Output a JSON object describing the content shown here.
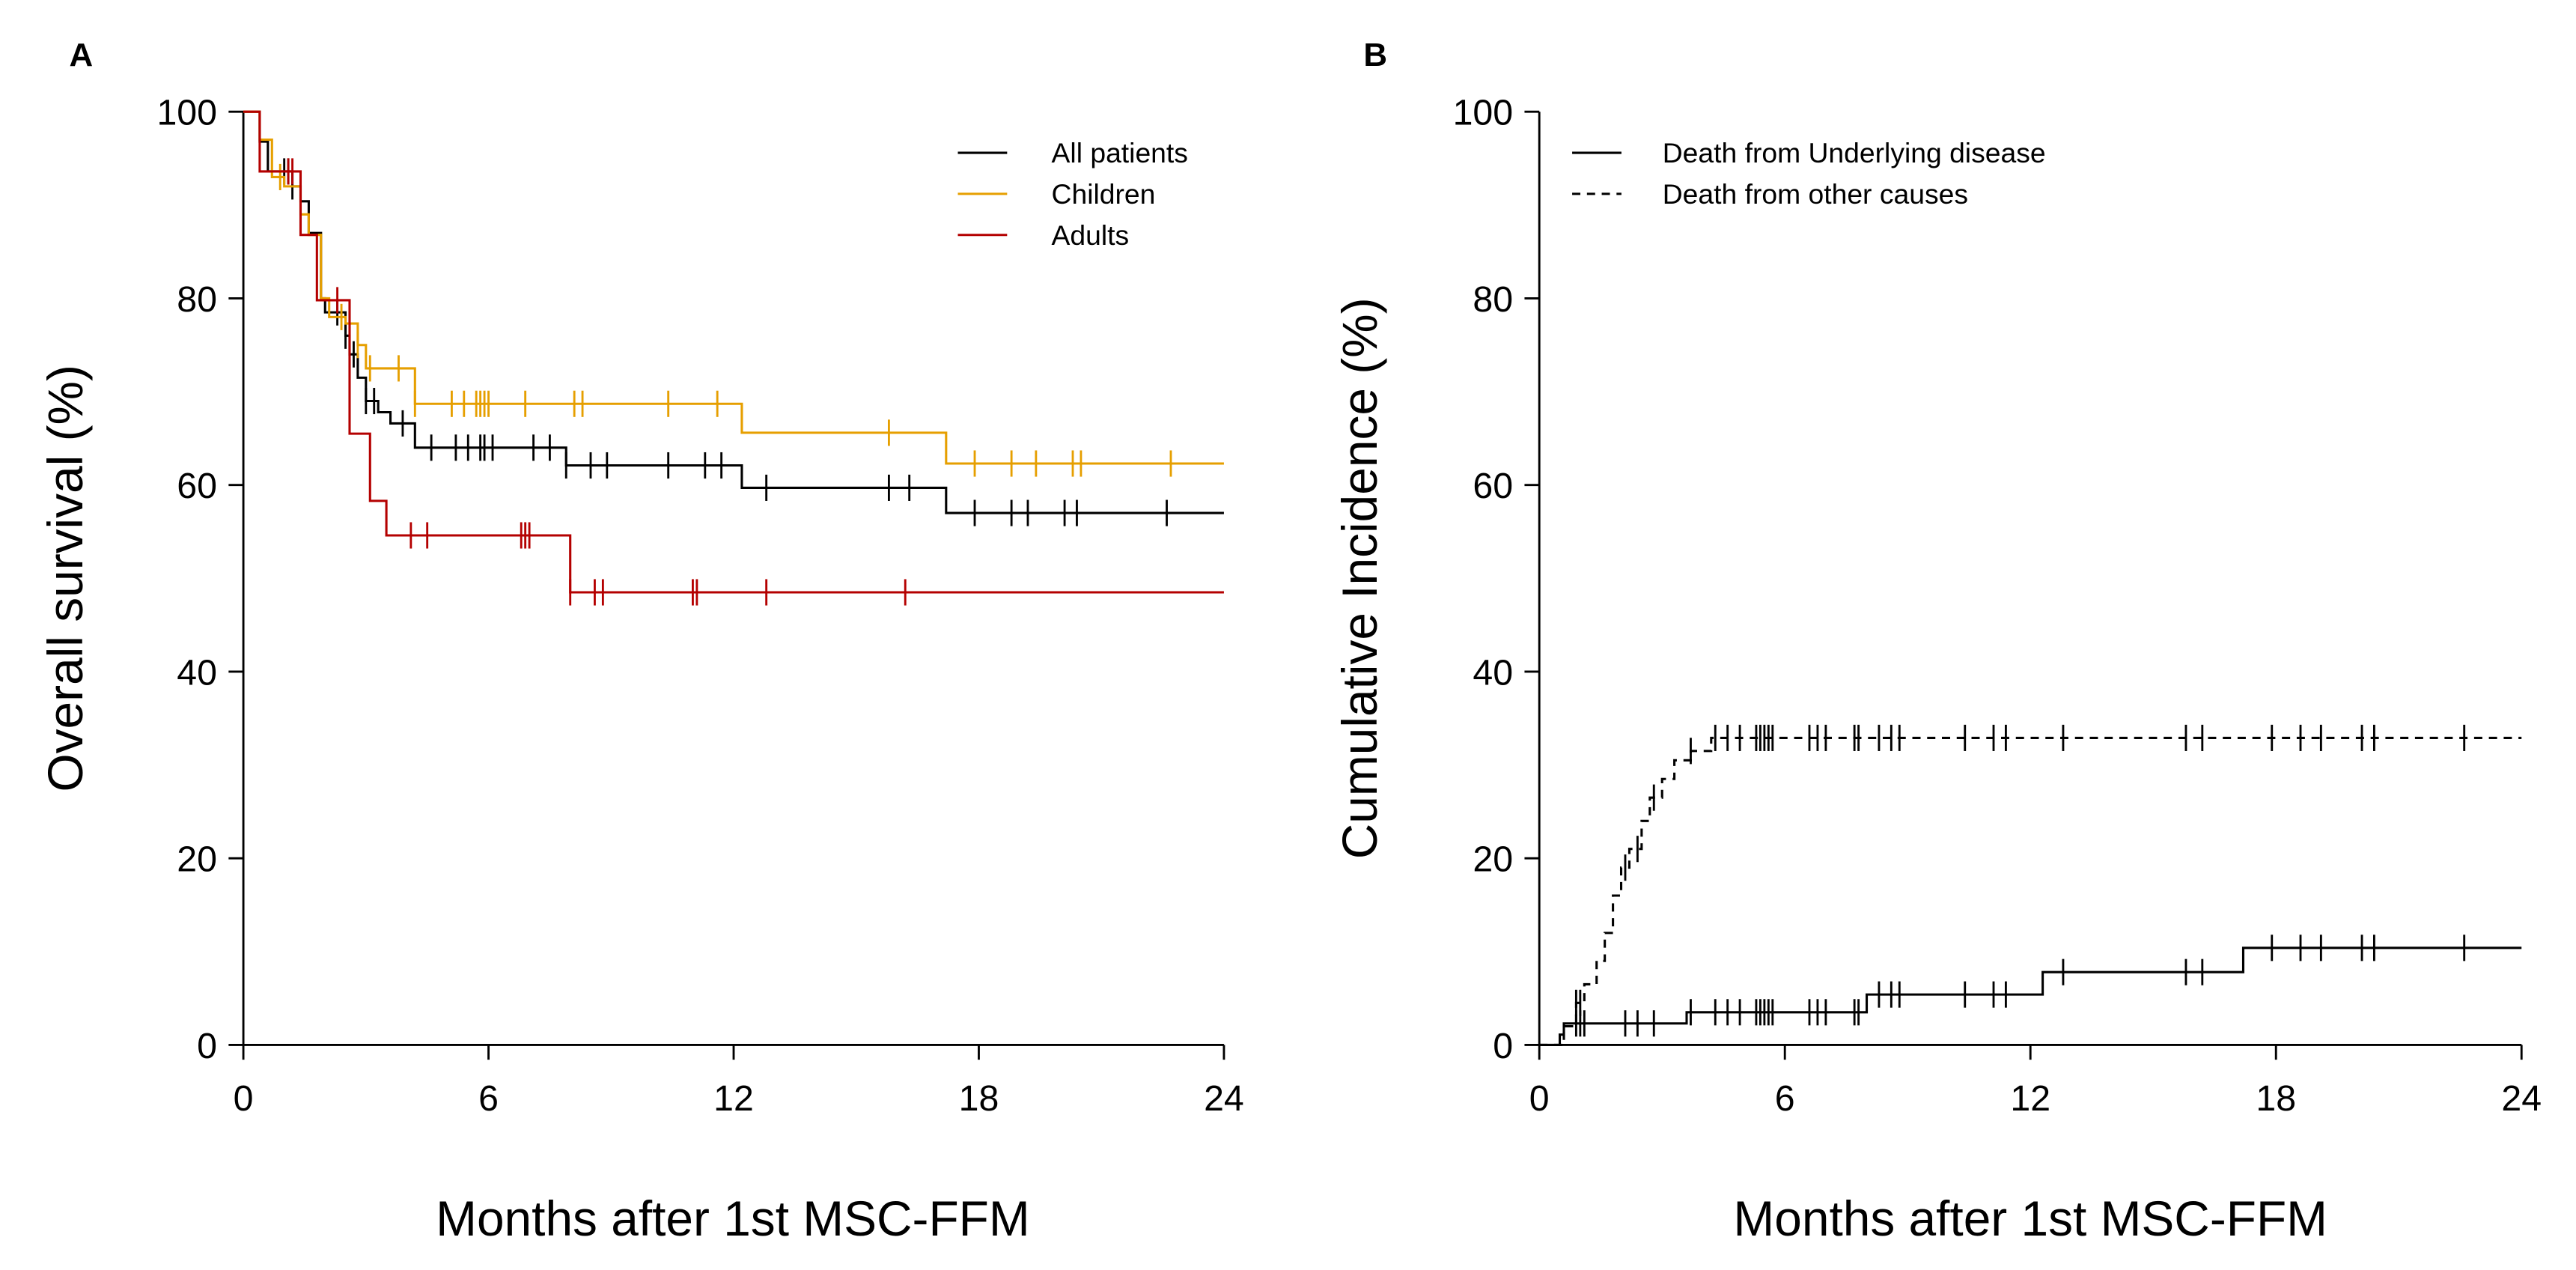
{
  "chart_data": [
    {
      "panel": "A",
      "type": "line",
      "step": true,
      "xlabel": "Months after 1st MSC-FFM",
      "ylabel": "Overall survival (%)",
      "xlim": [
        0,
        24
      ],
      "ylim": [
        0,
        100
      ],
      "xticks": [
        0,
        6,
        12,
        18,
        24
      ],
      "yticks": [
        0,
        20,
        40,
        60,
        80,
        100
      ],
      "legend_position": "top-right",
      "series": [
        {
          "name": "All patients",
          "color": "#000000",
          "dash": false,
          "points": [
            [
              0,
              100
            ],
            [
              0.4,
              96.8
            ],
            [
              0.6,
              93.6
            ],
            [
              1.2,
              92
            ],
            [
              1.4,
              90.4
            ],
            [
              1.6,
              87
            ],
            [
              1.9,
              80
            ],
            [
              2.0,
              78.5
            ],
            [
              2.5,
              76
            ],
            [
              2.6,
              74
            ],
            [
              2.8,
              71.5
            ],
            [
              3.0,
              69
            ],
            [
              3.3,
              67.8
            ],
            [
              3.6,
              66.6
            ],
            [
              4.2,
              64
            ],
            [
              7.9,
              62.1
            ],
            [
              12.2,
              59.7
            ],
            [
              17.2,
              57
            ],
            [
              24,
              57
            ]
          ],
          "censored": [
            1.0,
            1.1,
            1.2,
            2.3,
            2.5,
            2.7,
            3.0,
            3.2,
            3.9,
            4.6,
            5.2,
            5.5,
            5.8,
            5.9,
            6.1,
            7.1,
            7.5,
            7.9,
            8.5,
            8.9,
            10.4,
            11.3,
            11.7,
            12.8,
            15.8,
            16.3,
            17.9,
            18.8,
            19.2,
            20.1,
            20.4,
            22.6
          ]
        },
        {
          "name": "Children",
          "color": "#E69F00",
          "dash": false,
          "points": [
            [
              0,
              100
            ],
            [
              0.4,
              97
            ],
            [
              0.7,
              93
            ],
            [
              1.0,
              92
            ],
            [
              1.4,
              89
            ],
            [
              1.6,
              86.8
            ],
            [
              1.9,
              80
            ],
            [
              2.1,
              78
            ],
            [
              2.5,
              77.3
            ],
            [
              2.8,
              75
            ],
            [
              3.0,
              72.5
            ],
            [
              4.2,
              68.7
            ],
            [
              12.2,
              65.6
            ],
            [
              17.2,
              62.3
            ],
            [
              24,
              62.3
            ]
          ],
          "censored": [
            0.9,
            2.4,
            2.8,
            3.1,
            3.8,
            4.2,
            5.1,
            5.4,
            5.7,
            5.8,
            5.9,
            6.0,
            6.9,
            8.1,
            8.3,
            10.4,
            11.6,
            15.8,
            17.9,
            18.8,
            19.4,
            20.3,
            20.5,
            22.7
          ]
        },
        {
          "name": "Adults",
          "color": "#B40000",
          "dash": false,
          "points": [
            [
              0,
              100
            ],
            [
              0.4,
              93.6
            ],
            [
              1.4,
              86.8
            ],
            [
              1.8,
              79.8
            ],
            [
              2.6,
              65.5
            ],
            [
              3.1,
              58.3
            ],
            [
              3.5,
              54.6
            ],
            [
              8.0,
              48.5
            ],
            [
              24,
              48.5
            ]
          ],
          "censored": [
            1.1,
            1.2,
            2.3,
            4.1,
            4.5,
            6.8,
            6.9,
            7.0,
            8.0,
            8.6,
            8.8,
            11.0,
            11.1,
            12.8,
            16.2
          ]
        }
      ]
    },
    {
      "panel": "B",
      "type": "line",
      "step": true,
      "xlabel": "Months after 1st MSC-FFM",
      "ylabel": "Cumulative Incidence (%)",
      "xlim": [
        0,
        24
      ],
      "ylim": [
        0,
        100
      ],
      "xticks": [
        0,
        6,
        12,
        18,
        24
      ],
      "yticks": [
        0,
        20,
        40,
        60,
        80,
        100
      ],
      "legend_position": "top-left",
      "series": [
        {
          "name": "Death from Underlying disease",
          "color": "#000000",
          "dash": false,
          "points": [
            [
              0,
              0
            ],
            [
              0.5,
              0
            ],
            [
              0.5,
              1.1
            ],
            [
              0.6,
              2.3
            ],
            [
              3.6,
              3.5
            ],
            [
              8.0,
              5.4
            ],
            [
              12.3,
              7.8
            ],
            [
              17.2,
              10.4
            ],
            [
              24,
              10.4
            ]
          ],
          "censored": [
            0.9,
            1.0,
            1.1,
            2.1,
            2.4,
            2.8,
            3.7,
            4.3,
            4.6,
            4.9,
            5.3,
            5.4,
            5.5,
            5.6,
            5.7,
            6.6,
            6.8,
            7.0,
            7.7,
            7.8,
            8.3,
            8.6,
            8.8,
            10.4,
            11.1,
            11.4,
            12.8,
            15.8,
            16.2,
            17.9,
            18.6,
            19.1,
            20.1,
            20.4,
            22.6
          ]
        },
        {
          "name": "Death from other causes",
          "color": "#000000",
          "dash": true,
          "points": [
            [
              0,
              0
            ],
            [
              0.5,
              0
            ],
            [
              0.6,
              2
            ],
            [
              0.9,
              4.5
            ],
            [
              1.1,
              6.5
            ],
            [
              1.4,
              9
            ],
            [
              1.6,
              12
            ],
            [
              1.8,
              16
            ],
            [
              2.0,
              19
            ],
            [
              2.2,
              21
            ],
            [
              2.5,
              24
            ],
            [
              2.7,
              26.5
            ],
            [
              3.0,
              28.5
            ],
            [
              3.3,
              30.5
            ],
            [
              3.7,
              31.5
            ],
            [
              4.2,
              32.9
            ],
            [
              24,
              32.9
            ]
          ],
          "censored": [
            0.9,
            1.0,
            2.1,
            2.4,
            2.8,
            3.7,
            4.3,
            4.6,
            4.9,
            5.3,
            5.4,
            5.5,
            5.6,
            5.7,
            6.6,
            6.8,
            7.0,
            7.7,
            7.8,
            8.3,
            8.6,
            8.8,
            10.4,
            11.1,
            11.4,
            12.8,
            15.8,
            16.2,
            17.9,
            18.6,
            19.1,
            20.1,
            20.4,
            22.6
          ]
        }
      ]
    }
  ]
}
